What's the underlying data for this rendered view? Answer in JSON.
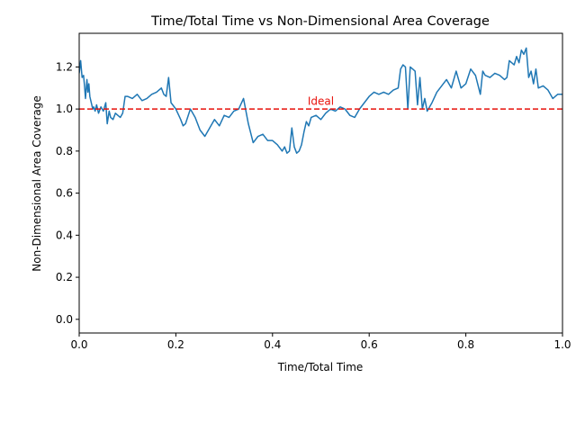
{
  "chart_data": {
    "type": "line",
    "title": "Time/Total Time vs Non-Dimensional Area Coverage",
    "xlabel": "Time/Total Time",
    "ylabel": "Non-Dimensional Area Coverage",
    "xlim": [
      0.0,
      1.0
    ],
    "ylim": [
      -0.065,
      1.36
    ],
    "xticks": [
      0.0,
      0.2,
      0.4,
      0.6,
      0.8,
      1.0
    ],
    "xtick_labels": [
      "0.0",
      "0.2",
      "0.4",
      "0.6",
      "0.8",
      "1.0"
    ],
    "yticks": [
      0.0,
      0.2,
      0.4,
      0.6,
      0.8,
      1.0,
      1.2
    ],
    "ytick_labels": [
      "0.0",
      "0.2",
      "0.4",
      "0.6",
      "0.8",
      "1.0",
      "1.2"
    ],
    "grid": false,
    "series": [
      {
        "color": "#1f77b4",
        "x": [
          0.0,
          0.003,
          0.006,
          0.009,
          0.011,
          0.013,
          0.016,
          0.018,
          0.02,
          0.022,
          0.025,
          0.028,
          0.03,
          0.033,
          0.036,
          0.04,
          0.045,
          0.05,
          0.055,
          0.058,
          0.062,
          0.065,
          0.07,
          0.075,
          0.08,
          0.085,
          0.09,
          0.095,
          0.1,
          0.11,
          0.12,
          0.13,
          0.14,
          0.15,
          0.16,
          0.17,
          0.175,
          0.18,
          0.185,
          0.19,
          0.2,
          0.21,
          0.215,
          0.22,
          0.23,
          0.24,
          0.25,
          0.26,
          0.27,
          0.28,
          0.29,
          0.3,
          0.31,
          0.32,
          0.33,
          0.34,
          0.35,
          0.36,
          0.37,
          0.38,
          0.39,
          0.4,
          0.41,
          0.42,
          0.425,
          0.43,
          0.435,
          0.44,
          0.445,
          0.45,
          0.455,
          0.46,
          0.465,
          0.47,
          0.475,
          0.48,
          0.49,
          0.5,
          0.51,
          0.52,
          0.53,
          0.54,
          0.55,
          0.56,
          0.57,
          0.58,
          0.59,
          0.6,
          0.61,
          0.62,
          0.63,
          0.64,
          0.65,
          0.66,
          0.665,
          0.67,
          0.675,
          0.68,
          0.685,
          0.69,
          0.695,
          0.7,
          0.705,
          0.71,
          0.715,
          0.72,
          0.73,
          0.74,
          0.75,
          0.76,
          0.77,
          0.78,
          0.79,
          0.8,
          0.81,
          0.82,
          0.83,
          0.835,
          0.84,
          0.85,
          0.86,
          0.87,
          0.88,
          0.885,
          0.89,
          0.9,
          0.905,
          0.91,
          0.915,
          0.92,
          0.925,
          0.93,
          0.935,
          0.94,
          0.945,
          0.95,
          0.96,
          0.97,
          0.98,
          0.99,
          1.0
        ],
        "y": [
          1.17,
          1.23,
          1.15,
          1.16,
          1.11,
          1.05,
          1.14,
          1.08,
          1.12,
          1.06,
          1.03,
          1.0,
          1.01,
          0.99,
          1.02,
          0.98,
          1.01,
          0.99,
          1.03,
          0.93,
          0.99,
          0.96,
          0.95,
          0.98,
          0.97,
          0.96,
          0.98,
          1.06,
          1.06,
          1.05,
          1.07,
          1.04,
          1.05,
          1.07,
          1.08,
          1.1,
          1.07,
          1.06,
          1.15,
          1.03,
          1.0,
          0.95,
          0.92,
          0.93,
          1.0,
          0.96,
          0.9,
          0.87,
          0.91,
          0.95,
          0.92,
          0.97,
          0.96,
          0.99,
          1.0,
          1.05,
          0.93,
          0.84,
          0.87,
          0.88,
          0.85,
          0.85,
          0.83,
          0.8,
          0.82,
          0.79,
          0.8,
          0.91,
          0.82,
          0.79,
          0.8,
          0.83,
          0.89,
          0.94,
          0.92,
          0.96,
          0.97,
          0.95,
          0.98,
          1.0,
          0.99,
          1.01,
          1.0,
          0.97,
          0.96,
          1.0,
          1.03,
          1.06,
          1.08,
          1.07,
          1.08,
          1.07,
          1.09,
          1.1,
          1.19,
          1.21,
          1.2,
          1.0,
          1.2,
          1.19,
          1.18,
          1.02,
          1.15,
          1.0,
          1.05,
          0.99,
          1.03,
          1.08,
          1.11,
          1.14,
          1.1,
          1.18,
          1.1,
          1.12,
          1.19,
          1.16,
          1.07,
          1.18,
          1.16,
          1.15,
          1.17,
          1.16,
          1.14,
          1.15,
          1.23,
          1.21,
          1.25,
          1.22,
          1.28,
          1.26,
          1.29,
          1.15,
          1.18,
          1.12,
          1.19,
          1.1,
          1.11,
          1.09,
          1.05,
          1.07,
          1.07
        ]
      }
    ],
    "reference_line": {
      "y": 1.0,
      "color": "#e8110b",
      "style": "dashed"
    },
    "annotations": [
      {
        "text": "Ideal",
        "x": 0.5,
        "y": 1.02,
        "color": "#e8110b"
      }
    ]
  }
}
